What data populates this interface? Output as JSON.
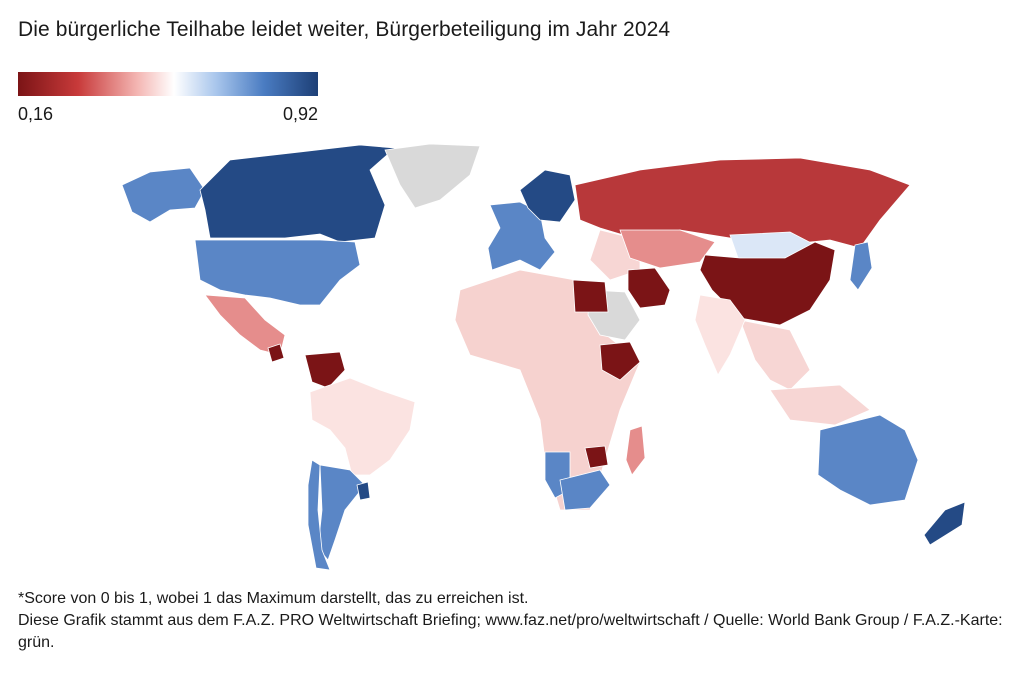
{
  "title": "Die bürgerliche Teilhabe leidet weiter, Bürgerbeteiligung im Jahr 2024",
  "legend": {
    "min_label": "0,16",
    "max_label": "0,92",
    "min_value": 0.16,
    "max_value": 0.92,
    "scale_colors": [
      "#7b1416",
      "#c83a3a",
      "#f4b7b4",
      "#ffffff",
      "#a9c6ec",
      "#4a7cc2",
      "#1d3f76"
    ]
  },
  "chart_data": {
    "type": "choropleth",
    "title": "Die bürgerliche Teilhabe leidet weiter, Bürgerbeteiligung im Jahr 2024",
    "value_range": [
      0.16,
      0.92
    ],
    "no_data_color": "#d9d9d9",
    "regions": [
      {
        "region": "Canada",
        "level": "high"
      },
      {
        "region": "United States",
        "level": "medium-high"
      },
      {
        "region": "Alaska",
        "level": "medium-high"
      },
      {
        "region": "Greenland",
        "level": "no data"
      },
      {
        "region": "Mexico",
        "level": "low-medium"
      },
      {
        "region": "Nicaragua",
        "level": "very low"
      },
      {
        "region": "Venezuela",
        "level": "very low"
      },
      {
        "region": "Brazil",
        "level": "near middle"
      },
      {
        "region": "Argentina",
        "level": "medium-high"
      },
      {
        "region": "Uruguay",
        "level": "high"
      },
      {
        "region": "Chile",
        "level": "medium-high"
      },
      {
        "region": "Russia",
        "level": "low"
      },
      {
        "region": "China",
        "level": "very low"
      },
      {
        "region": "Mongolia",
        "level": "near middle-high"
      },
      {
        "region": "Kazakhstan",
        "level": "low-medium"
      },
      {
        "region": "Iran",
        "level": "very low"
      },
      {
        "region": "Egypt",
        "level": "very low"
      },
      {
        "region": "Ethiopia",
        "level": "very low"
      },
      {
        "region": "Saudi Arabia",
        "level": "no data"
      },
      {
        "region": "India",
        "level": "near middle"
      },
      {
        "region": "Australia",
        "level": "medium-high"
      },
      {
        "region": "New Zealand",
        "level": "high"
      },
      {
        "region": "Scandinavia",
        "level": "high"
      },
      {
        "region": "Western Europe",
        "level": "medium-high"
      },
      {
        "region": "Japan",
        "level": "medium-high"
      },
      {
        "region": "Zimbabwe",
        "level": "very low"
      },
      {
        "region": "Namibia",
        "level": "medium-high"
      },
      {
        "region": "South Africa",
        "level": "medium-high"
      },
      {
        "region": "Madagascar",
        "level": "low-medium"
      }
    ]
  },
  "footer": {
    "note": "*Score von 0 bis 1, wobei 1 das Maximum darstellt, das zu erreichen ist.",
    "source": "Diese Grafik stammt aus dem F.A.Z. PRO Weltwirtschaft Briefing; www.faz.net/pro/weltwirtschaft / Quelle: World Bank Group / F.A.Z.-Karte: grün."
  }
}
